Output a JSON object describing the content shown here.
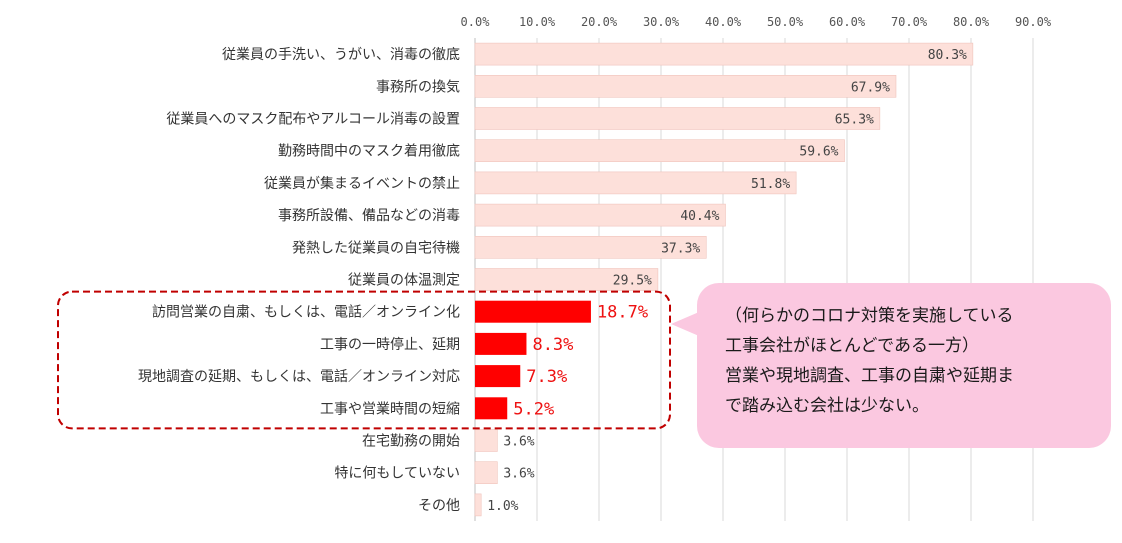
{
  "chart_data": {
    "type": "bar",
    "orientation": "horizontal",
    "xlim": [
      0,
      90
    ],
    "x_ticks": [
      "0.0%",
      "10.0%",
      "20.0%",
      "30.0%",
      "40.0%",
      "50.0%",
      "60.0%",
      "70.0%",
      "80.0%",
      "90.0%"
    ],
    "categories": [
      "従業員の手洗い、うがい、消毒の徹底",
      "事務所の換気",
      "従業員へのマスク配布やアルコール消毒の設置",
      "勤務時間中のマスク着用徹底",
      "従業員が集まるイベントの禁止",
      "事務所設備、備品などの消毒",
      "発熱した従業員の自宅待機",
      "従業員の体温測定",
      "訪問営業の自粛、もしくは、電話／オンライン化",
      "工事の一時停止、延期",
      "現地調査の延期、もしくは、電話／オンライン対応",
      "工事や営業時間の短縮",
      "在宅勤務の開始",
      "特に何もしていない",
      "その他"
    ],
    "values": [
      80.3,
      67.9,
      65.3,
      59.6,
      51.8,
      40.4,
      37.3,
      29.5,
      18.7,
      8.3,
      7.3,
      5.2,
      3.6,
      3.6,
      1.0
    ],
    "value_labels": [
      "80.3%",
      "67.9%",
      "65.3%",
      "59.6%",
      "51.8%",
      "40.4%",
      "37.3%",
      "29.5%",
      "18.7%",
      "8.3%",
      "7.3%",
      "5.2%",
      "3.6%",
      "3.6%",
      "1.0%"
    ],
    "highlighted": [
      8,
      9,
      10,
      11
    ],
    "colors": {
      "bar": "#fde0da",
      "bar_border": "#f0c4bc",
      "highlight": "#ff0000",
      "highlight_label": "#ee1111",
      "dash_box": "#c00000"
    },
    "grid": true
  },
  "callout": {
    "lines": [
      "（何らかのコロナ対策を実施している",
      "工事会社がほとんどである一方）",
      "営業や現地調査、工事の自粛や延期ま",
      "で踏み込む会社は少ない。"
    ],
    "background": "#fbc8e0"
  }
}
